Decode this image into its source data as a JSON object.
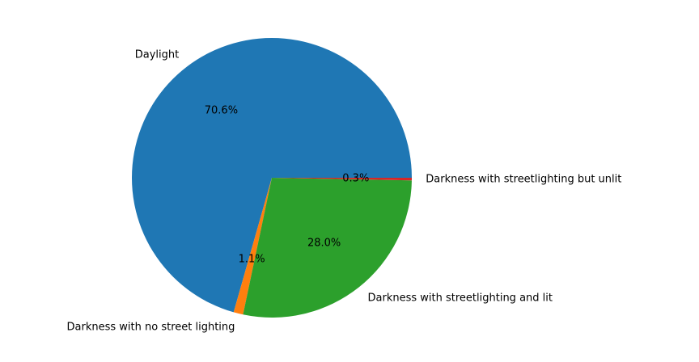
{
  "chart_data": {
    "type": "pie",
    "title": "",
    "start_angle_deg": 0,
    "direction": "counterclockwise",
    "legend": "none",
    "slices": [
      {
        "label": "Daylight",
        "value": 70.6,
        "pct_label": "70.6%",
        "color": "#1f77b4"
      },
      {
        "label": "Darkness with no street lighting",
        "value": 1.1,
        "pct_label": "1.1%",
        "color": "#ff7f0e"
      },
      {
        "label": "Darkness with streetlighting and lit",
        "value": 28.0,
        "pct_label": "28.0%",
        "color": "#2ca02c"
      },
      {
        "label": "Darkness with streetlighting but unlit",
        "value": 0.3,
        "pct_label": "0.3%",
        "color": "#d62728"
      }
    ]
  }
}
